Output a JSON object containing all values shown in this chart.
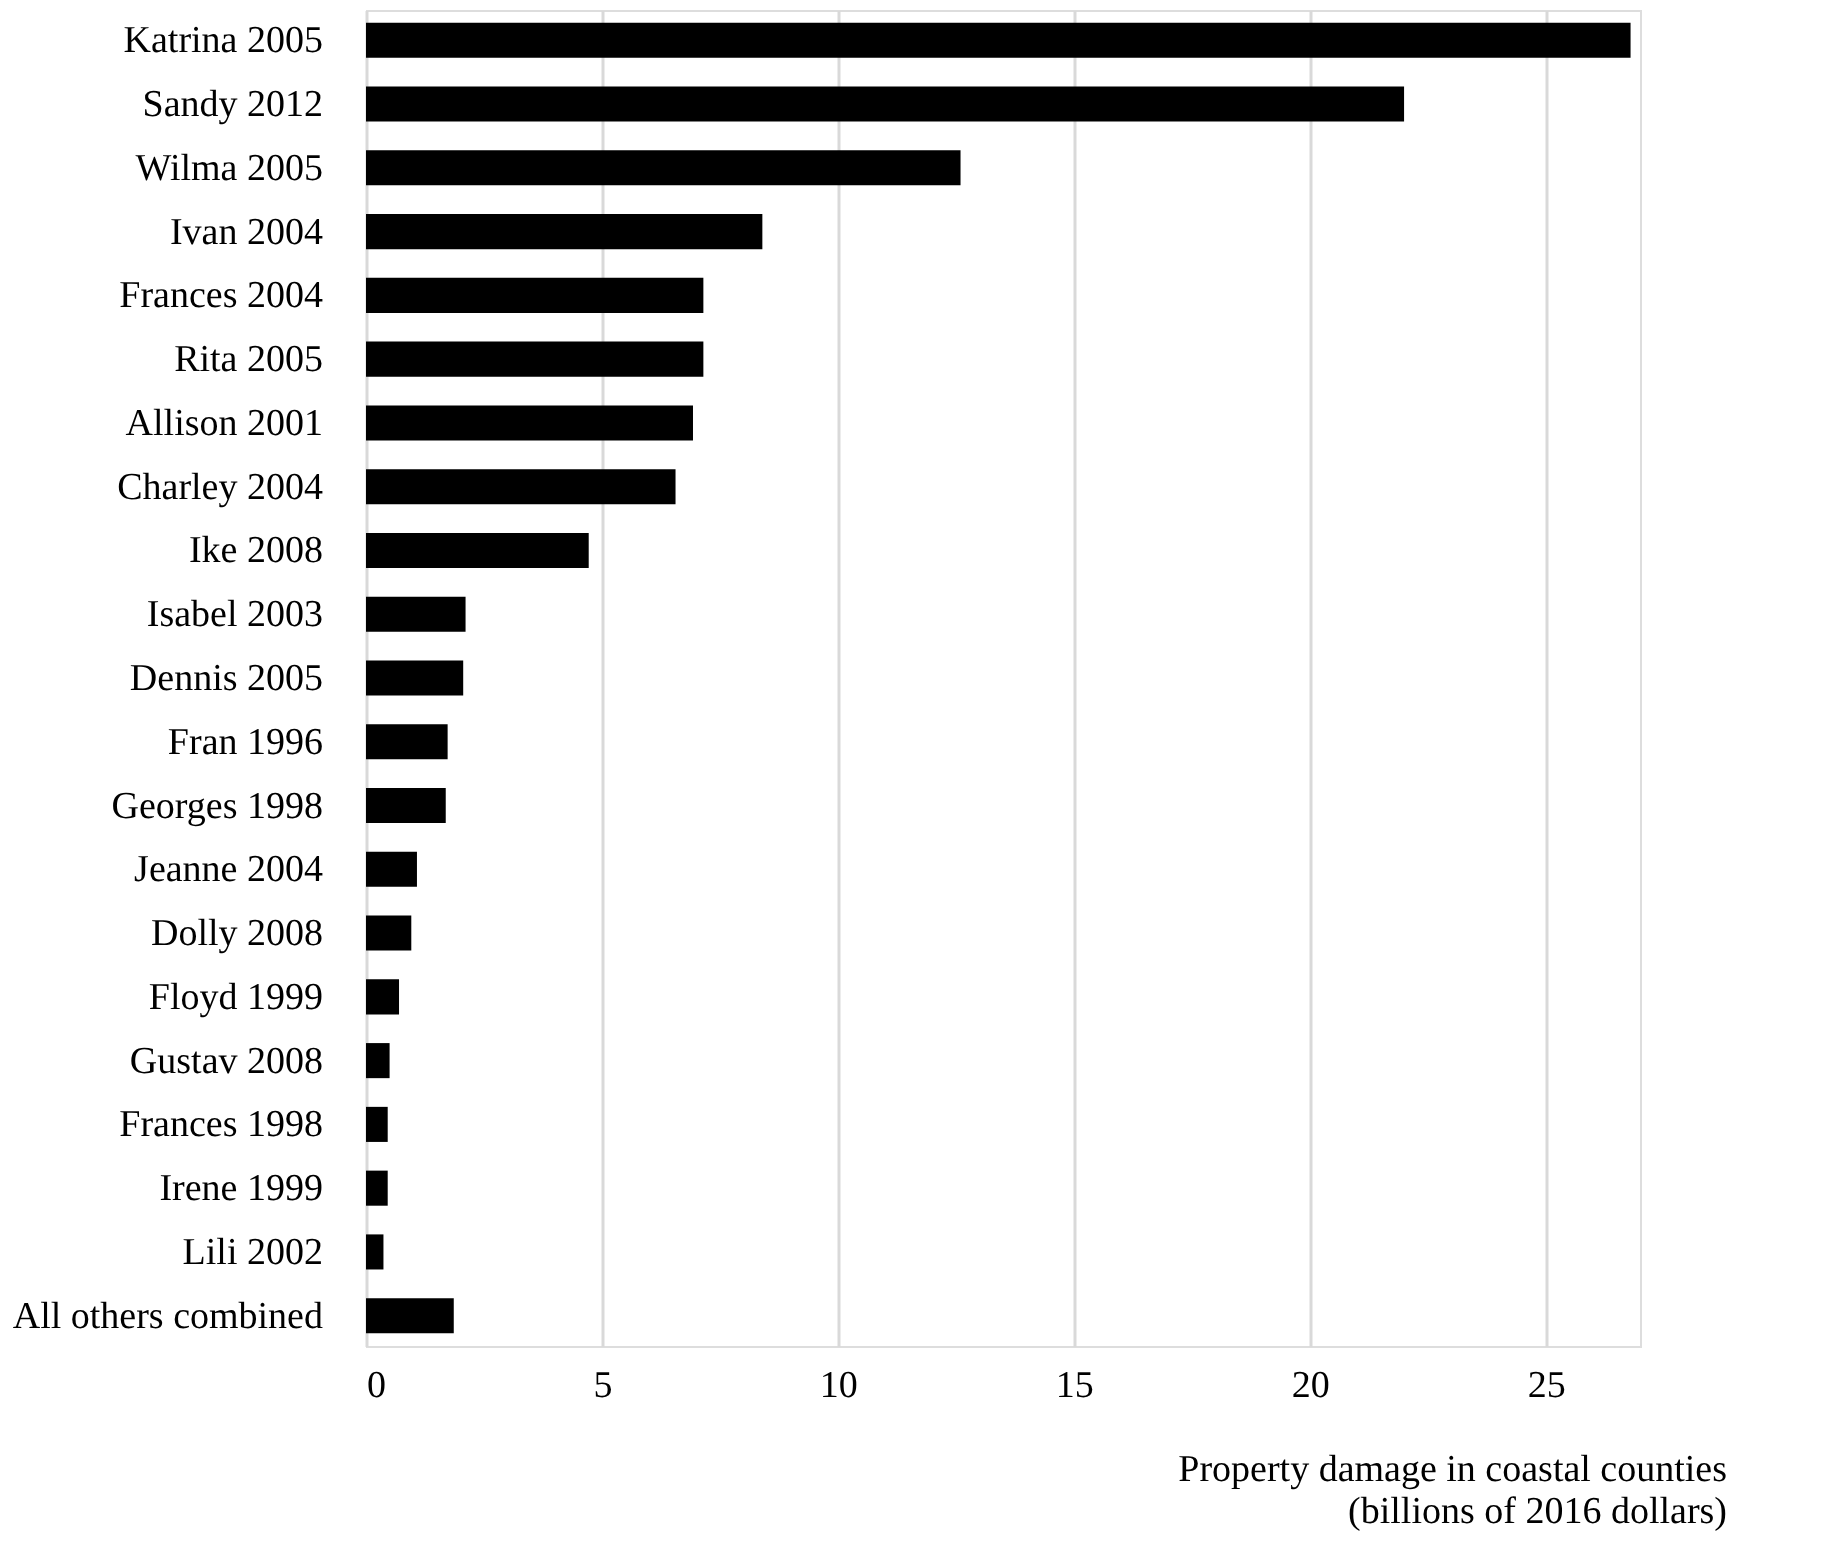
{
  "chart_data": {
    "type": "bar",
    "orientation": "horizontal",
    "categories": [
      "Katrina 2005",
      "Sandy 2012",
      "Wilma 2005",
      "Ivan 2004",
      "Frances 2004",
      "Rita 2005",
      "Allison 2001",
      "Charley 2004",
      "Ike 2008",
      "Isabel 2003",
      "Dennis 2005",
      "Fran 1996",
      "Georges 1998",
      "Jeanne 2004",
      "Dolly 2008",
      "Floyd 1999",
      "Gustav 2008",
      "Frances 1998",
      "Irene 1999",
      "Lili 2002",
      "All others combined"
    ],
    "values": [
      26.8,
      22.0,
      12.6,
      8.4,
      7.15,
      7.15,
      6.93,
      6.56,
      4.72,
      2.11,
      2.06,
      1.73,
      1.69,
      1.08,
      0.96,
      0.7,
      0.5,
      0.46,
      0.46,
      0.37,
      1.86
    ],
    "color": "#000000",
    "xlabel": "Property damage in coastal counties\n(billions of 2016 dollars)",
    "xlim": [
      0,
      27
    ],
    "xticks": [
      0,
      5,
      10,
      15,
      20,
      25
    ],
    "grid": "x"
  }
}
